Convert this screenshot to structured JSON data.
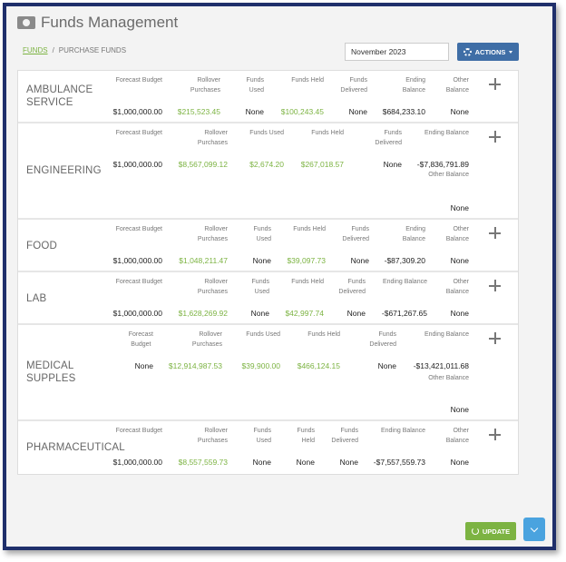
{
  "page": {
    "title": "Funds Management"
  },
  "breadcrumb": {
    "link": "FUNDS",
    "separator": "/",
    "current": "PURCHASE FUNDS"
  },
  "filter": {
    "date_value": "November 2023"
  },
  "toolbar": {
    "actions_label": "ACTIONS",
    "update_label": "UPDATE"
  },
  "headers": {
    "forecast_budget": "Forecast Budget",
    "forecast": "Forecast",
    "budget": "Budget",
    "rollover": "Rollover",
    "purchases": "Purchases",
    "rollover_purchases": "Rollover Purchases",
    "funds": "Funds",
    "used": "Used",
    "funds_used": "Funds Used",
    "held": "Held",
    "funds_held": "Funds Held",
    "delivered": "Delivered",
    "ending": "Ending",
    "balance": "Balance",
    "ending_balance": "Ending Balance",
    "other": "Other",
    "other_balance": "Other Balance"
  },
  "departments": [
    {
      "name_line1": "AMBULANCE",
      "name_line2": "SERVICE",
      "forecast_budget": "$1,000,000.00",
      "rollover_purchases": "$215,523.45",
      "funds_used": "None",
      "funds_held": "$100,243.45",
      "funds_delivered": "None",
      "ending_balance": "$684,233.10",
      "other_balance": "None"
    },
    {
      "name_line1": "ENGINEERING",
      "forecast_budget": "$1,000,000.00",
      "rollover_purchases": "$8,567,099.12",
      "funds_used": "$2,674.20",
      "funds_held": "$267,018.57",
      "funds_delivered": "None",
      "ending_balance": "-$7,836,791.89",
      "other_balance": "None"
    },
    {
      "name_line1": "FOOD",
      "forecast_budget": "$1,000,000.00",
      "rollover_purchases": "$1,048,211.47",
      "funds_used": "None",
      "funds_held": "$39,097.73",
      "funds_delivered": "None",
      "ending_balance": "-$87,309.20",
      "other_balance": "None"
    },
    {
      "name_line1": "LAB",
      "forecast_budget": "$1,000,000.00",
      "rollover_purchases": "$1,628,269.92",
      "funds_used": "None",
      "funds_held": "$42,997.74",
      "funds_delivered": "None",
      "ending_balance": "-$671,267.65",
      "other_balance": "None"
    },
    {
      "name_line1": "MEDICAL",
      "name_line2": "SUPPLES",
      "forecast_budget": "None",
      "rollover_purchases": "$12,914,987.53",
      "funds_used": "$39,900.00",
      "funds_held": "$466,124.15",
      "funds_delivered": "None",
      "ending_balance": "-$13,421,011.68",
      "other_balance": "None"
    },
    {
      "name_line1": "PHARMACEUTICAL",
      "forecast_budget": "$1,000,000.00",
      "rollover_purchases": "$8,557,559.73",
      "funds_used": "None",
      "funds_held": "None",
      "funds_delivered": "None",
      "ending_balance": "-$7,557,559.73",
      "other_balance": "None"
    }
  ],
  "icons": [
    "money-icon",
    "gear-icon",
    "caret-down-icon",
    "plus-icon",
    "refresh-icon",
    "chevron-down-icon"
  ],
  "colors": {
    "frame": "#1f2f6b",
    "green": "#7cb342",
    "actions": "#3f6ea6",
    "scroll": "#4aa3df"
  }
}
